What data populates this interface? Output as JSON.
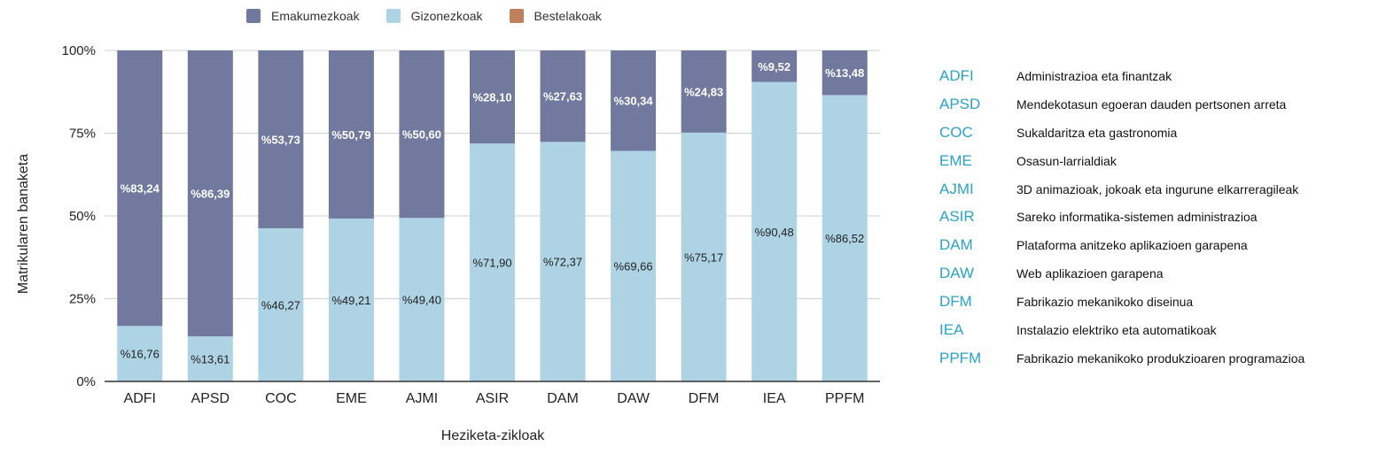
{
  "legend": [
    {
      "name": "Emakumezkoak",
      "color": "#717a9e"
    },
    {
      "name": "Gizonezkoak",
      "color": "#aed3e5"
    },
    {
      "name": "Bestelakoak",
      "color": "#c0805c"
    }
  ],
  "chart_data": {
    "type": "bar",
    "stacked": true,
    "xlabel": "Heziketa-zikloak",
    "ylabel": "Matrikularen banaketa",
    "ylim": [
      0,
      100
    ],
    "yticks": [
      "0%",
      "25%",
      "50%",
      "75%",
      "100%"
    ],
    "grid": true,
    "legend_position": "top",
    "categories": [
      "ADFI",
      "APSD",
      "COC",
      "EME",
      "AJMI",
      "ASIR",
      "DAM",
      "DAW",
      "DFM",
      "IEA",
      "PPFM"
    ],
    "series": [
      {
        "name": "Gizonezkoak",
        "color": "#aed3e5",
        "values": [
          16.76,
          13.61,
          46.27,
          49.21,
          49.4,
          71.9,
          72.37,
          69.66,
          75.17,
          90.48,
          86.52
        ],
        "labels": [
          "%16,76",
          "%13,61",
          "%46,27",
          "%49,21",
          "%49,40",
          "%71,90",
          "%72,37",
          "%69,66",
          "%75,17",
          "%90,48",
          "%86,52"
        ]
      },
      {
        "name": "Emakumezkoak",
        "color": "#717a9e",
        "values": [
          83.24,
          86.39,
          53.73,
          50.79,
          50.6,
          28.1,
          27.63,
          30.34,
          24.83,
          9.52,
          13.48
        ],
        "labels": [
          "%83,24",
          "%86,39",
          "%53,73",
          "%50,79",
          "%50,60",
          "%28,10",
          "%27,63",
          "%30,34",
          "%24,83",
          "%9,52",
          "%13,48"
        ]
      },
      {
        "name": "Bestelakoak",
        "color": "#c0805c",
        "values": [
          0,
          0,
          0,
          0,
          0,
          0,
          0,
          0,
          0,
          0,
          0
        ]
      }
    ]
  },
  "glossary": [
    {
      "code": "ADFI",
      "desc": "Administrazioa eta finantzak"
    },
    {
      "code": "APSD",
      "desc": "Mendekotasun egoeran dauden pertsonen arreta"
    },
    {
      "code": "COC",
      "desc": "Sukaldaritza eta gastronomia"
    },
    {
      "code": "EME",
      "desc": "Osasun-larrialdiak"
    },
    {
      "code": "AJMI",
      "desc": "3D animazioak, jokoak eta ingurune elkarreragileak"
    },
    {
      "code": "ASIR",
      "desc": "Sareko informatika-sistemen administrazioa"
    },
    {
      "code": "DAM",
      "desc": "Plataforma anitzeko aplikazioen garapena"
    },
    {
      "code": "DAW",
      "desc": "Web aplikazioen garapena"
    },
    {
      "code": "DFM",
      "desc": "Fabrikazio mekanikoko diseinua"
    },
    {
      "code": "IEA",
      "desc": "Instalazio elektriko eta automatikoak"
    },
    {
      "code": "PPFM",
      "desc": "Fabrikazio mekanikoko produkzioaren programazioa"
    }
  ]
}
